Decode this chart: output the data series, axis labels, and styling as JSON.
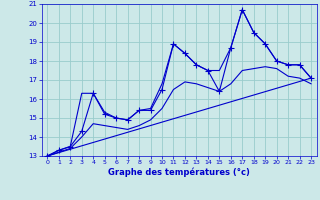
{
  "xlabel": "Graphe des températures (°c)",
  "xlim": [
    -0.5,
    23.5
  ],
  "ylim": [
    13,
    21
  ],
  "yticks": [
    13,
    14,
    15,
    16,
    17,
    18,
    19,
    20,
    21
  ],
  "xticks": [
    0,
    1,
    2,
    3,
    4,
    5,
    6,
    7,
    8,
    9,
    10,
    11,
    12,
    13,
    14,
    15,
    16,
    17,
    18,
    19,
    20,
    21,
    22,
    23
  ],
  "bg_color": "#cce8e8",
  "grid_color": "#99cccc",
  "line_color": "#0000cc",
  "hours": [
    0,
    1,
    2,
    3,
    4,
    5,
    6,
    7,
    8,
    9,
    10,
    11,
    12,
    13,
    14,
    15,
    16,
    17,
    18,
    19,
    20,
    21,
    22,
    23
  ],
  "temp_main": [
    13.0,
    13.3,
    13.5,
    14.3,
    16.3,
    15.2,
    15.0,
    14.9,
    15.4,
    15.4,
    16.5,
    18.9,
    18.4,
    17.8,
    17.5,
    16.4,
    18.7,
    20.7,
    19.5,
    18.9,
    18.0,
    17.8,
    17.8,
    17.1
  ],
  "temp_min": [
    13.0,
    13.2,
    13.4,
    14.0,
    14.7,
    14.6,
    14.5,
    14.4,
    14.6,
    14.9,
    15.5,
    16.5,
    16.9,
    16.8,
    16.6,
    16.4,
    16.8,
    17.5,
    17.6,
    17.7,
    17.6,
    17.2,
    17.1,
    16.8
  ],
  "temp_max": [
    13.0,
    13.3,
    13.5,
    16.3,
    16.3,
    15.3,
    15.0,
    14.9,
    15.4,
    15.5,
    16.8,
    18.9,
    18.4,
    17.8,
    17.5,
    17.5,
    18.7,
    20.7,
    19.5,
    18.9,
    18.0,
    17.8,
    17.8,
    17.1
  ],
  "trend_x": [
    0,
    23
  ],
  "trend_y": [
    13.0,
    17.1
  ],
  "figsize": [
    3.2,
    2.0
  ],
  "dpi": 100
}
